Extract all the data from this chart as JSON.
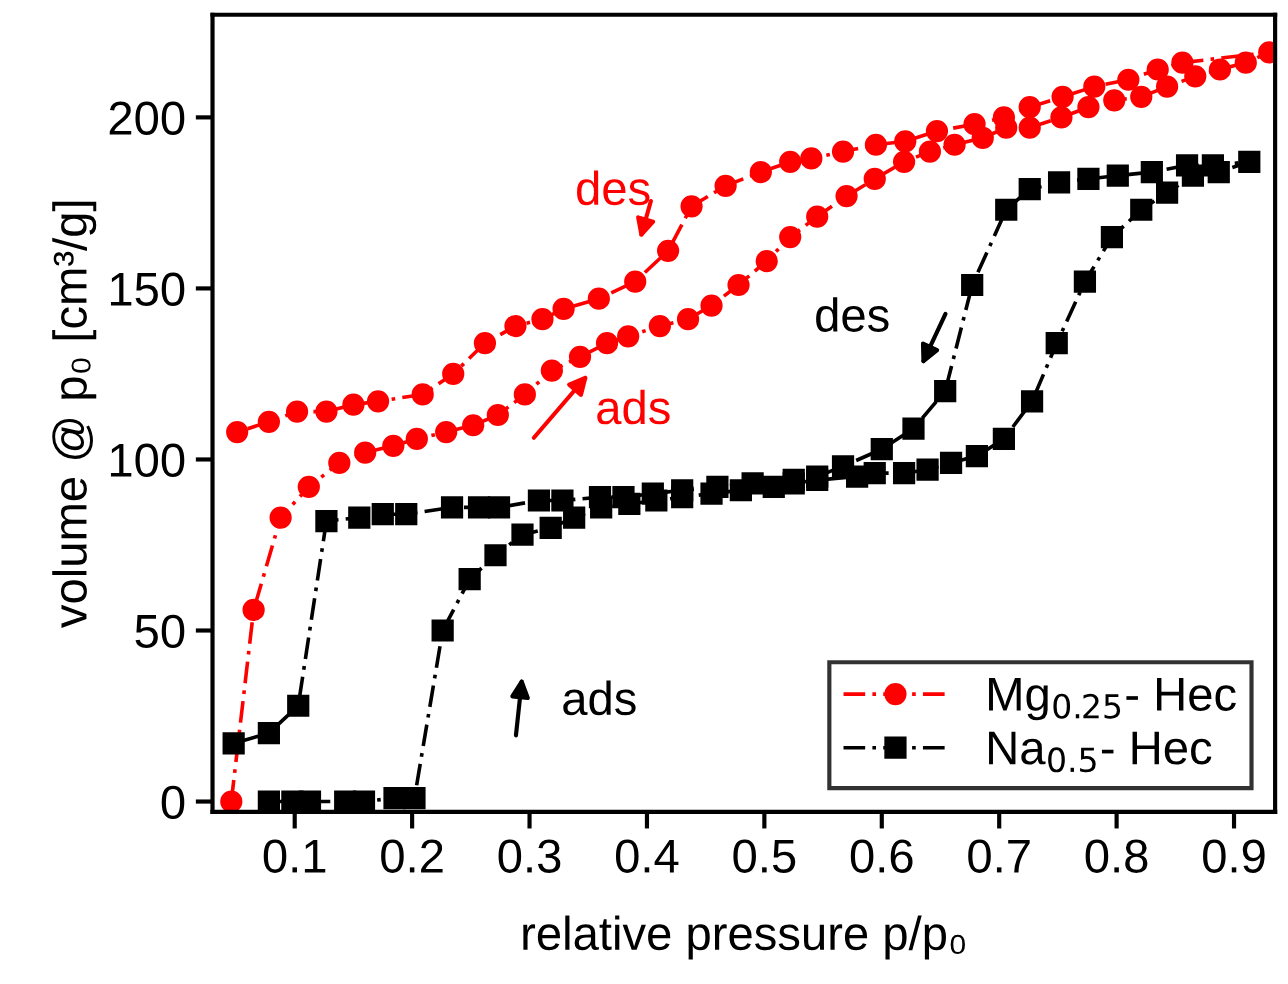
{
  "chart_data": {
    "type": "line",
    "xlabel": "relative pressure p/p₀",
    "ylabel": "volume @ p₀ [cm³/g]",
    "xlim": [
      0.03,
      0.935
    ],
    "ylim": [
      -3,
      230
    ],
    "xticks": [
      0.1,
      0.2,
      0.3,
      0.4,
      0.5,
      0.6,
      0.7,
      0.8,
      0.9
    ],
    "yticks": [
      0,
      50,
      100,
      150,
      200
    ],
    "grid": false,
    "legend": "bottom right",
    "line_style": "dashed",
    "series": [
      {
        "name": "Mg$_{0.25}$- Hec",
        "color": "#ff0000",
        "marker": "circle",
        "x": [
          0.046,
          0.065,
          0.088,
          0.112,
          0.138,
          0.16,
          0.184,
          0.204,
          0.229,
          0.252,
          0.273,
          0.296,
          0.319,
          0.343,
          0.366,
          0.384,
          0.411,
          0.435,
          0.455,
          0.478,
          0.502,
          0.522,
          0.545,
          0.57,
          0.594,
          0.619,
          0.641,
          0.662,
          0.686,
          0.706,
          0.726,
          0.753,
          0.776,
          0.798,
          0.821,
          0.843,
          0.867,
          0.888,
          0.91,
          0.93,
          0.856,
          0.835,
          0.81,
          0.781,
          0.754,
          0.726,
          0.704,
          0.679,
          0.647,
          0.62,
          0.595,
          0.567,
          0.54,
          0.522,
          0.497,
          0.467,
          0.438,
          0.418,
          0.39,
          0.359,
          0.329,
          0.311,
          0.288,
          0.262,
          0.235,
          0.209,
          0.171,
          0.15,
          0.127,
          0.102,
          0.078,
          0.051
        ],
        "values": [
          0,
          56,
          83,
          92,
          99,
          102,
          104,
          106,
          108,
          110,
          113,
          119,
          126,
          130,
          134,
          136,
          139,
          141,
          145,
          151,
          158,
          165,
          171,
          177,
          182,
          187,
          190,
          192,
          194,
          197,
          197,
          200,
          203,
          205,
          206,
          209,
          212,
          214,
          216,
          219,
          216,
          214,
          211,
          209,
          206,
          203,
          200,
          198,
          196,
          193,
          192,
          190,
          188,
          187,
          184,
          180,
          174,
          161,
          152,
          147,
          144,
          141,
          139,
          134,
          125,
          119,
          117,
          116,
          114,
          114,
          111,
          108
        ]
      },
      {
        "name": "Na$_{0.5}$- Hec",
        "color": "#000000",
        "marker": "square",
        "x": [
          0.078,
          0.098,
          0.113,
          0.143,
          0.159,
          0.185,
          0.202,
          0.226,
          0.249,
          0.271,
          0.294,
          0.318,
          0.338,
          0.361,
          0.385,
          0.408,
          0.43,
          0.455,
          0.48,
          0.508,
          0.525,
          0.545,
          0.579,
          0.594,
          0.619,
          0.639,
          0.659,
          0.681,
          0.704,
          0.728,
          0.749,
          0.773,
          0.796,
          0.821,
          0.843,
          0.865,
          0.887,
          0.913,
          0.882,
          0.86,
          0.83,
          0.801,
          0.776,
          0.751,
          0.726,
          0.706,
          0.677,
          0.654,
          0.627,
          0.6,
          0.567,
          0.545,
          0.525,
          0.49,
          0.46,
          0.43,
          0.405,
          0.38,
          0.36,
          0.328,
          0.308,
          0.274,
          0.257,
          0.234,
          0.195,
          0.175,
          0.155,
          0.127,
          0.103,
          0.078,
          0.048
        ],
        "values": [
          0,
          0,
          0,
          0,
          0,
          1,
          1,
          50,
          65,
          72,
          78,
          80,
          83,
          86,
          87,
          88,
          89,
          90,
          91,
          92,
          93,
          94,
          95,
          96,
          96,
          97,
          99,
          101,
          106,
          117,
          134,
          152,
          165,
          173,
          178,
          183,
          184,
          187,
          186,
          186,
          184,
          183,
          182,
          181,
          179,
          173,
          151,
          120,
          109,
          103,
          98,
          95,
          94,
          93,
          92,
          91,
          90,
          89,
          89,
          88,
          88,
          86,
          86,
          86,
          84,
          84,
          83,
          82,
          28,
          20,
          17
        ]
      }
    ],
    "annotations": [
      "des",
      "ads",
      "des",
      "ads"
    ]
  }
}
